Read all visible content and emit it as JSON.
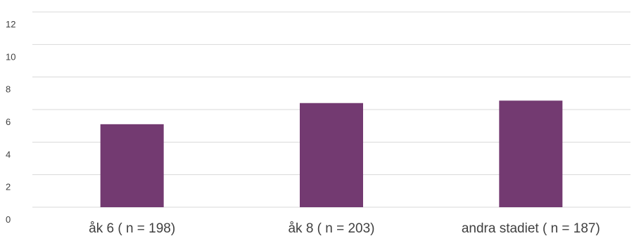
{
  "chart_data": {
    "type": "bar",
    "categories": [
      "åk 6 ( n = 198)",
      "åk 8 ( n = 203)",
      "andra stadiet ( n = 187)"
    ],
    "values": [
      5.1,
      6.4,
      6.55
    ],
    "ylim": [
      0,
      12
    ],
    "yticks": [
      "0",
      "2",
      "4",
      "6",
      "8",
      "10",
      "12"
    ],
    "grid": true,
    "colors": {
      "bar": "#733a71",
      "grid": "#d9d9d9"
    }
  }
}
